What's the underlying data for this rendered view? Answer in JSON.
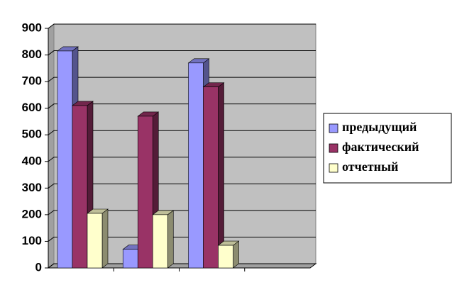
{
  "chart_data": {
    "type": "bar3d",
    "categories": [
      null,
      null,
      null,
      null
    ],
    "series": [
      {
        "name": "предыдущий",
        "color": "#9999ff",
        "values": [
          815,
          70,
          770,
          null
        ]
      },
      {
        "name": "фактический",
        "color": "#993366",
        "values": [
          610,
          570,
          680,
          null
        ]
      },
      {
        "name": "отчетный",
        "color": "#ffffcc",
        "values": [
          205,
          200,
          85,
          null
        ]
      }
    ],
    "ylim": [
      0,
      900
    ],
    "yticks": [
      0,
      100,
      200,
      300,
      400,
      500,
      600,
      700,
      800,
      900
    ],
    "grid": true,
    "legend": "right"
  }
}
